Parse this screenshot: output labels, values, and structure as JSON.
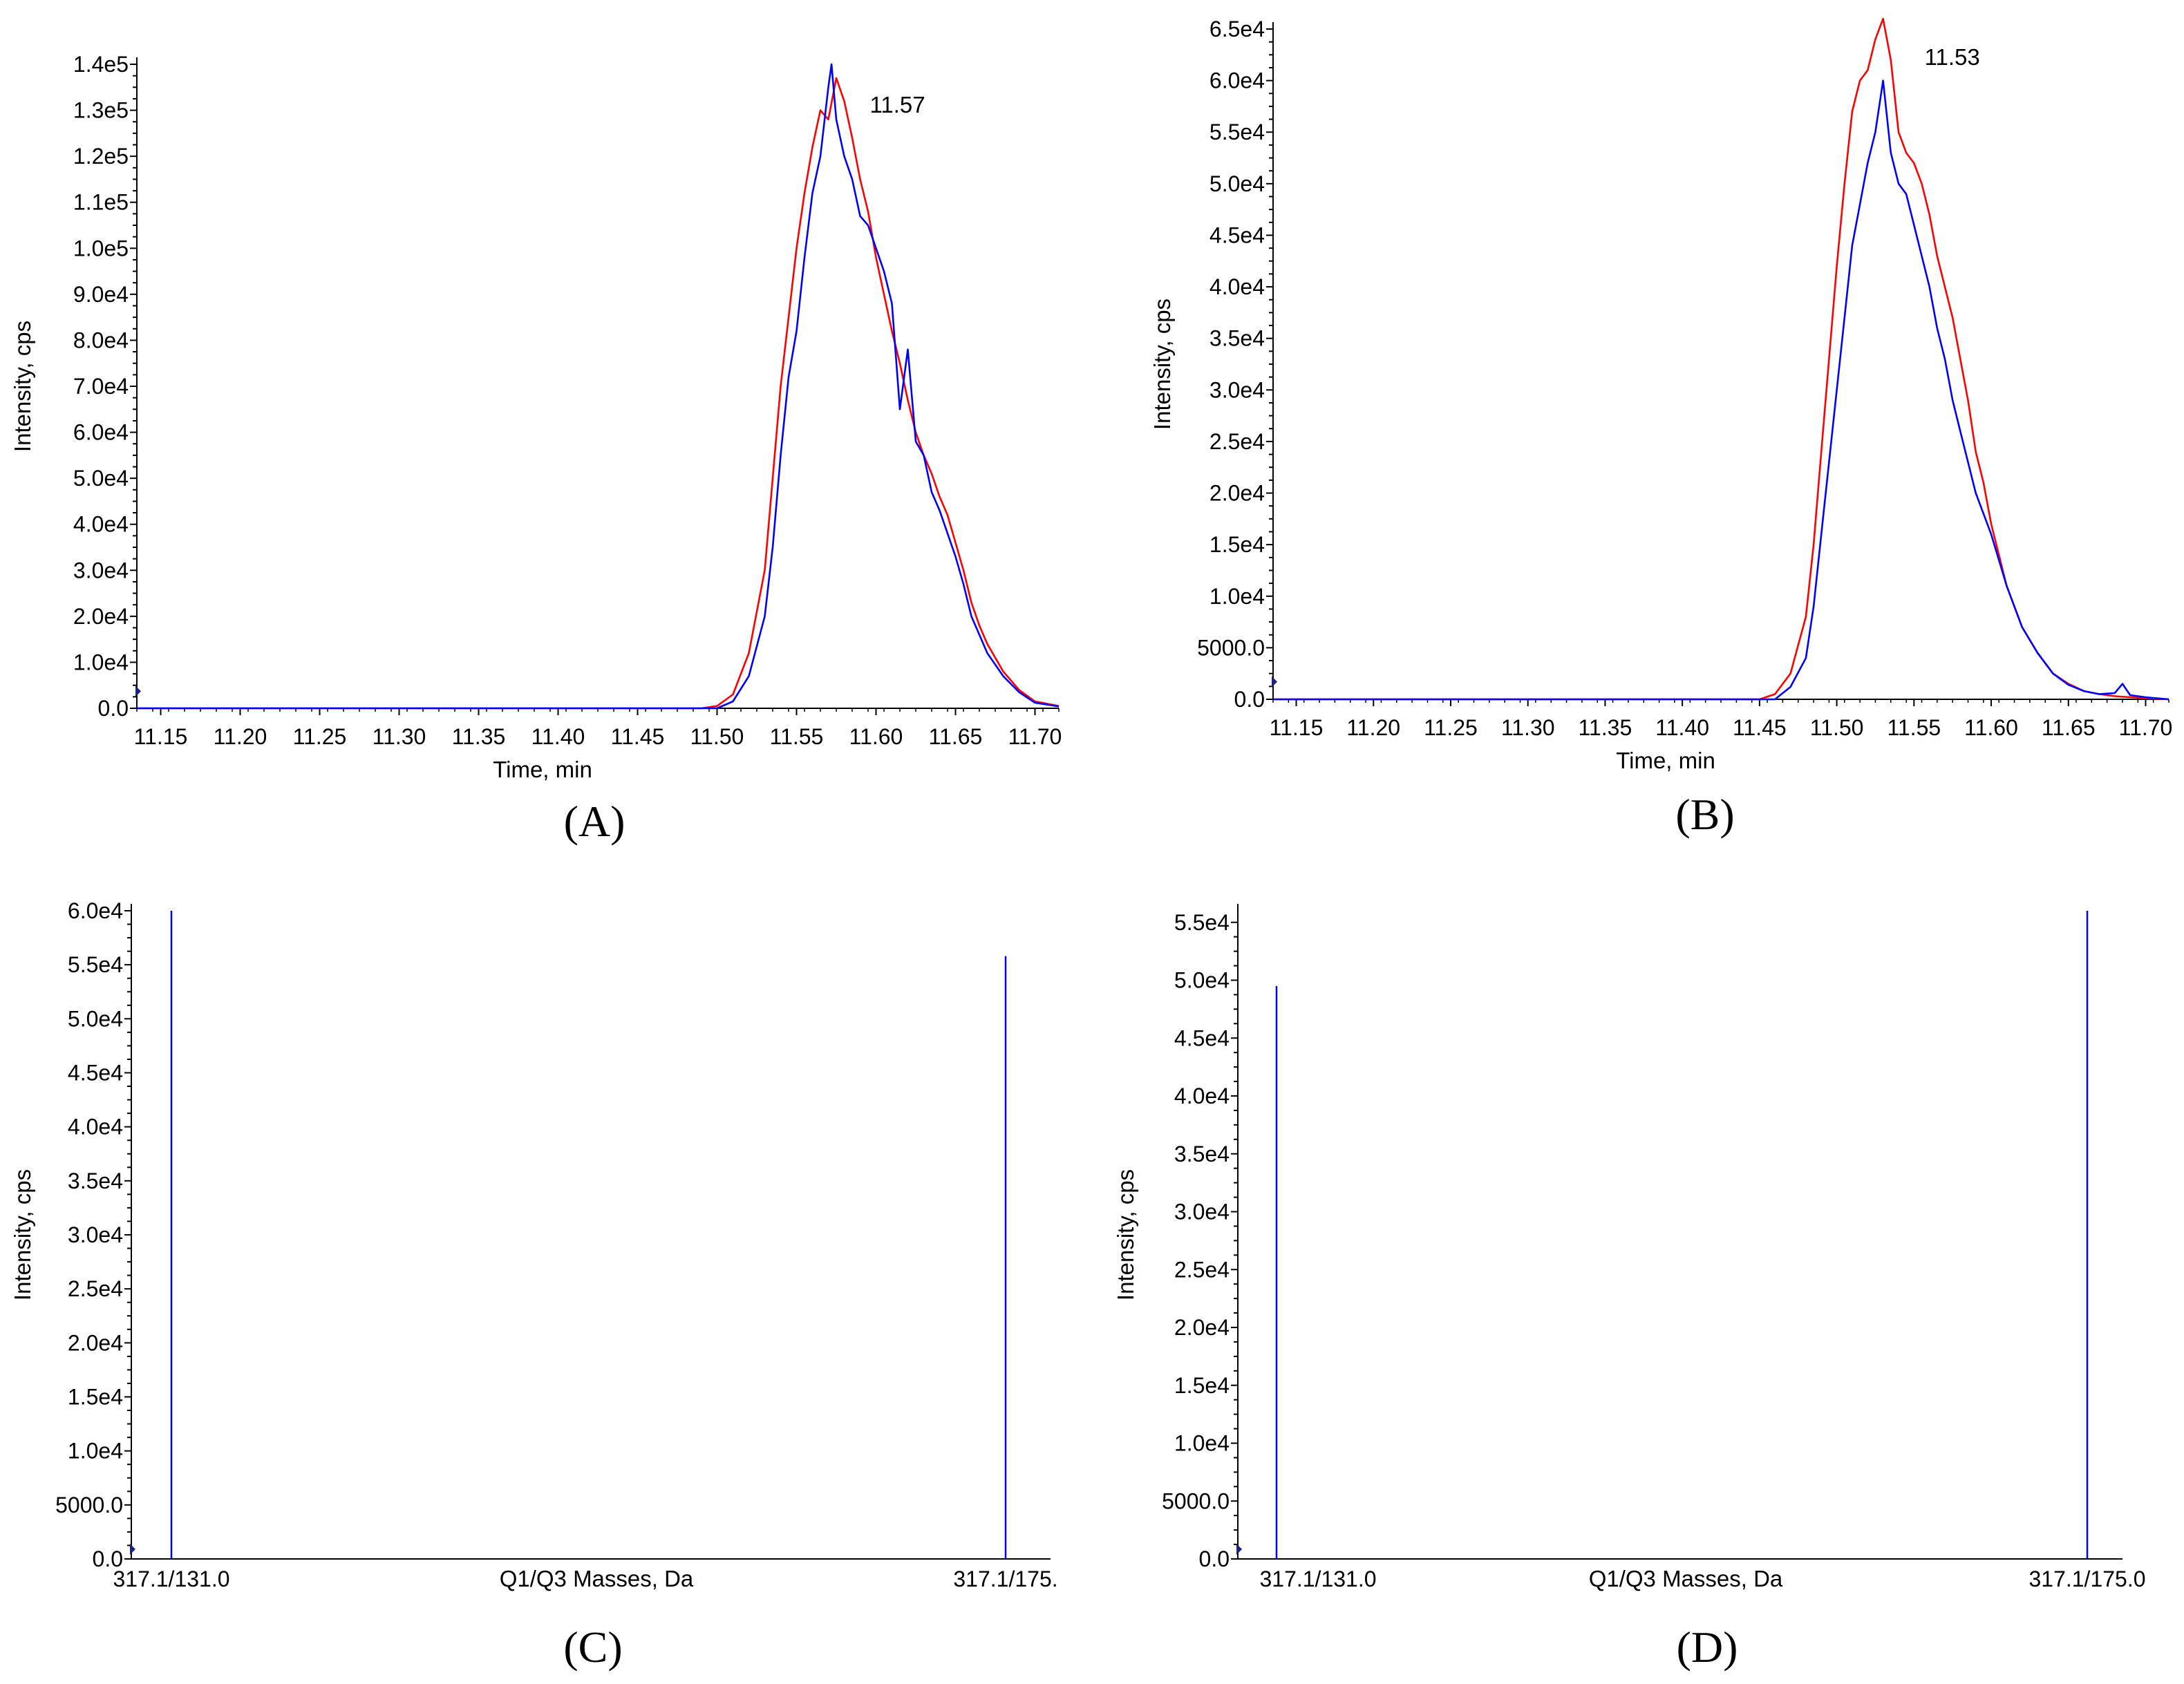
{
  "chart_data": [
    {
      "panel": "(A)",
      "type": "line",
      "xlabel": "Time, min",
      "ylabel": "Intensity, cps",
      "xlim": [
        11.135,
        11.715
      ],
      "ylim": [
        0,
        140000
      ],
      "x_ticks": [
        "11.15",
        "11.20",
        "11.25",
        "11.30",
        "11.35",
        "11.40",
        "11.45",
        "11.50",
        "11.55",
        "11.60",
        "11.65",
        "11.70"
      ],
      "y_ticks": [
        "0.0",
        "1.0e4",
        "2.0e4",
        "3.0e4",
        "4.0e4",
        "5.0e4",
        "6.0e4",
        "7.0e4",
        "8.0e4",
        "9.0e4",
        "1.0e5",
        "1.1e5",
        "1.2e5",
        "1.3e5",
        "1.4e5"
      ],
      "peak_label": "11.57",
      "peak_x": 11.57,
      "series": [
        {
          "color": "#ff0000",
          "x": [
            11.135,
            11.3,
            11.49,
            11.5,
            11.51,
            11.52,
            11.53,
            11.535,
            11.54,
            11.545,
            11.55,
            11.555,
            11.56,
            11.565,
            11.57,
            11.575,
            11.58,
            11.585,
            11.59,
            11.595,
            11.6,
            11.605,
            11.61,
            11.615,
            11.62,
            11.625,
            11.63,
            11.635,
            11.64,
            11.645,
            11.65,
            11.655,
            11.66,
            11.665,
            11.67,
            11.68,
            11.69,
            11.7,
            11.715
          ],
          "y": [
            0,
            0,
            0,
            500,
            3000,
            12000,
            30000,
            50000,
            70000,
            85000,
            100000,
            112000,
            122000,
            130000,
            128000,
            137000,
            132000,
            124000,
            115000,
            108000,
            98000,
            90000,
            82000,
            75000,
            67000,
            60000,
            55000,
            51000,
            46000,
            42000,
            36000,
            30000,
            23000,
            18000,
            14000,
            8000,
            4000,
            1500,
            500
          ]
        },
        {
          "color": "#0000ff",
          "x": [
            11.135,
            11.3,
            11.5,
            11.51,
            11.52,
            11.53,
            11.535,
            11.54,
            11.545,
            11.55,
            11.555,
            11.56,
            11.565,
            11.57,
            11.572,
            11.575,
            11.58,
            11.585,
            11.59,
            11.595,
            11.6,
            11.605,
            11.61,
            11.615,
            11.62,
            11.625,
            11.63,
            11.635,
            11.64,
            11.645,
            11.65,
            11.655,
            11.66,
            11.665,
            11.67,
            11.68,
            11.69,
            11.7,
            11.715
          ],
          "y": [
            0,
            0,
            0,
            1500,
            7000,
            20000,
            35000,
            55000,
            72000,
            82000,
            98000,
            112000,
            120000,
            135000,
            140000,
            128000,
            120000,
            115000,
            107000,
            105000,
            100000,
            95000,
            88000,
            65000,
            78000,
            58000,
            55000,
            47000,
            43000,
            38000,
            33000,
            27000,
            20000,
            16000,
            12000,
            7000,
            3500,
            1200,
            400
          ]
        }
      ]
    },
    {
      "panel": "(B)",
      "type": "line",
      "xlabel": "Time, min",
      "ylabel": "Intensity, cps",
      "xlim": [
        11.135,
        11.715
      ],
      "ylim": [
        0,
        65000
      ],
      "x_ticks": [
        "11.15",
        "11.20",
        "11.25",
        "11.30",
        "11.35",
        "11.40",
        "11.45",
        "11.50",
        "11.55",
        "11.60",
        "11.65",
        "11.70"
      ],
      "y_ticks": [
        "0.0",
        "5000.0",
        "1.0e4",
        "1.5e4",
        "2.0e4",
        "2.5e4",
        "3.0e4",
        "3.5e4",
        "4.0e4",
        "4.5e4",
        "5.0e4",
        "5.5e4",
        "6.0e4",
        "6.5e4"
      ],
      "peak_label": "11.53",
      "peak_x": 11.53,
      "series": [
        {
          "color": "#ff0000",
          "x": [
            11.135,
            11.3,
            11.45,
            11.46,
            11.47,
            11.48,
            11.485,
            11.49,
            11.495,
            11.5,
            11.505,
            11.51,
            11.515,
            11.52,
            11.525,
            11.53,
            11.535,
            11.54,
            11.545,
            11.55,
            11.555,
            11.56,
            11.565,
            11.57,
            11.575,
            11.58,
            11.585,
            11.59,
            11.595,
            11.6,
            11.61,
            11.62,
            11.63,
            11.64,
            11.65,
            11.66,
            11.67,
            11.68,
            11.69,
            11.7,
            11.715
          ],
          "y": [
            0,
            0,
            0,
            500,
            2500,
            8000,
            15000,
            24000,
            33000,
            42000,
            50000,
            57000,
            60000,
            61000,
            64000,
            66000,
            62000,
            55000,
            53000,
            52000,
            50000,
            47000,
            43000,
            40000,
            37000,
            33000,
            29000,
            24000,
            21000,
            17000,
            11000,
            7000,
            4500,
            2500,
            1500,
            800,
            500,
            300,
            200,
            100,
            0
          ]
        },
        {
          "color": "#0000ff",
          "x": [
            11.135,
            11.3,
            11.46,
            11.47,
            11.48,
            11.485,
            11.49,
            11.495,
            11.5,
            11.505,
            11.51,
            11.515,
            11.52,
            11.525,
            11.53,
            11.535,
            11.54,
            11.545,
            11.55,
            11.555,
            11.56,
            11.565,
            11.57,
            11.575,
            11.58,
            11.585,
            11.59,
            11.595,
            11.6,
            11.61,
            11.62,
            11.63,
            11.64,
            11.65,
            11.66,
            11.67,
            11.68,
            11.685,
            11.69,
            11.7,
            11.715
          ],
          "y": [
            0,
            0,
            0,
            1200,
            4000,
            9000,
            16000,
            23000,
            30000,
            37000,
            44000,
            48000,
            52000,
            55000,
            60000,
            53000,
            50000,
            49000,
            46000,
            43000,
            40000,
            36000,
            33000,
            29000,
            26000,
            23000,
            20000,
            18000,
            16000,
            11000,
            7000,
            4500,
            2500,
            1400,
            800,
            500,
            600,
            1500,
            400,
            200,
            0
          ]
        }
      ]
    },
    {
      "panel": "(C)",
      "type": "bar",
      "xlabel": "Q1/Q3 Masses, Da",
      "ylabel": "Intensity, cps",
      "ylim": [
        0,
        60000
      ],
      "y_ticks": [
        "0.0",
        "5000.0",
        "1.0e4",
        "1.5e4",
        "2.0e4",
        "2.5e4",
        "3.0e4",
        "3.5e4",
        "4.0e4",
        "4.5e4",
        "5.0e4",
        "5.5e4",
        "6.0e4"
      ],
      "categories": [
        "317.1/131.0",
        "317.1/175."
      ],
      "values": [
        60000,
        55800
      ],
      "color": "#0000ff"
    },
    {
      "panel": "(D)",
      "type": "bar",
      "xlabel": "Q1/Q3 Masses, Da",
      "ylabel": "Intensity, cps",
      "ylim": [
        0,
        56000
      ],
      "y_ticks": [
        "0.0",
        "5000.0",
        "1.0e4",
        "1.5e4",
        "2.0e4",
        "2.5e4",
        "3.0e4",
        "3.5e4",
        "4.0e4",
        "4.5e4",
        "5.0e4",
        "5.5e4"
      ],
      "categories": [
        "317.1/131.0",
        "317.1/175.0"
      ],
      "values": [
        49500,
        56000
      ],
      "color": "#0000ff"
    }
  ]
}
